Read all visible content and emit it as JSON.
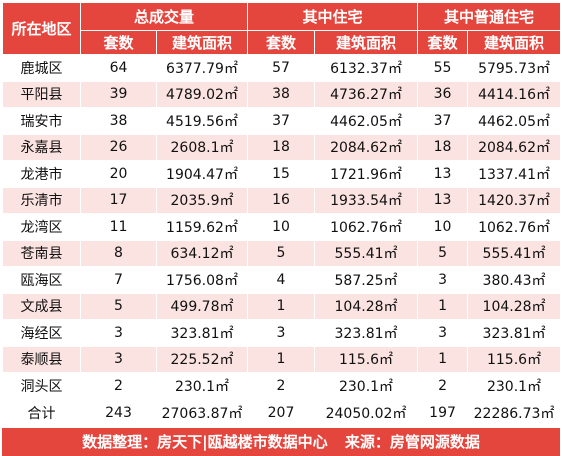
{
  "headers": {
    "district": "所在地区",
    "group_total": "总成交量",
    "group_residential": "其中住宅",
    "group_ordinary": "其中普通住宅",
    "units": "套数",
    "area": "建筑面积"
  },
  "rows": [
    {
      "district": "鹿城区",
      "total_units": "64",
      "total_area": "6377.79㎡",
      "res_units": "57",
      "res_area": "6132.37㎡",
      "ord_units": "55",
      "ord_area": "5795.73㎡"
    },
    {
      "district": "平阳县",
      "total_units": "39",
      "total_area": "4789.02㎡",
      "res_units": "38",
      "res_area": "4736.27㎡",
      "ord_units": "36",
      "ord_area": "4414.16㎡"
    },
    {
      "district": "瑞安市",
      "total_units": "38",
      "total_area": "4519.56㎡",
      "res_units": "37",
      "res_area": "4462.05㎡",
      "ord_units": "37",
      "ord_area": "4462.05㎡"
    },
    {
      "district": "永嘉县",
      "total_units": "26",
      "total_area": "2608.1㎡",
      "res_units": "18",
      "res_area": "2084.62㎡",
      "ord_units": "18",
      "ord_area": "2084.62㎡"
    },
    {
      "district": "龙港市",
      "total_units": "20",
      "total_area": "1904.47㎡",
      "res_units": "15",
      "res_area": "1721.96㎡",
      "ord_units": "13",
      "ord_area": "1337.41㎡"
    },
    {
      "district": "乐清市",
      "total_units": "17",
      "total_area": "2035.9㎡",
      "res_units": "16",
      "res_area": "1933.54㎡",
      "ord_units": "13",
      "ord_area": "1420.37㎡"
    },
    {
      "district": "龙湾区",
      "total_units": "11",
      "total_area": "1159.62㎡",
      "res_units": "10",
      "res_area": "1062.76㎡",
      "ord_units": "10",
      "ord_area": "1062.76㎡"
    },
    {
      "district": "苍南县",
      "total_units": "8",
      "total_area": "634.12㎡",
      "res_units": "5",
      "res_area": "555.41㎡",
      "ord_units": "5",
      "ord_area": "555.41㎡"
    },
    {
      "district": "瓯海区",
      "total_units": "7",
      "total_area": "1756.08㎡",
      "res_units": "4",
      "res_area": "587.25㎡",
      "ord_units": "3",
      "ord_area": "380.43㎡"
    },
    {
      "district": "文成县",
      "total_units": "5",
      "total_area": "499.78㎡",
      "res_units": "1",
      "res_area": "104.28㎡",
      "ord_units": "1",
      "ord_area": "104.28㎡"
    },
    {
      "district": "海经区",
      "total_units": "3",
      "total_area": "323.81㎡",
      "res_units": "3",
      "res_area": "323.81㎡",
      "ord_units": "3",
      "ord_area": "323.81㎡"
    },
    {
      "district": "泰顺县",
      "total_units": "3",
      "total_area": "225.52㎡",
      "res_units": "1",
      "res_area": "115.6㎡",
      "ord_units": "1",
      "ord_area": "115.6㎡"
    },
    {
      "district": "洞头区",
      "total_units": "2",
      "total_area": "230.1㎡",
      "res_units": "2",
      "res_area": "230.1㎡",
      "ord_units": "2",
      "ord_area": "230.1㎡"
    }
  ],
  "total": {
    "district": "合计",
    "total_units": "243",
    "total_area": "27063.87㎡",
    "res_units": "207",
    "res_area": "24050.02㎡",
    "ord_units": "197",
    "ord_area": "22286.73㎡"
  },
  "footer": {
    "compiled": "数据整理：房天下|瓯越楼市数据中心",
    "source": "来源：房管网源数据"
  },
  "colors": {
    "header_red": "#e4463e",
    "stripe_pink": "#fbe3e1"
  }
}
